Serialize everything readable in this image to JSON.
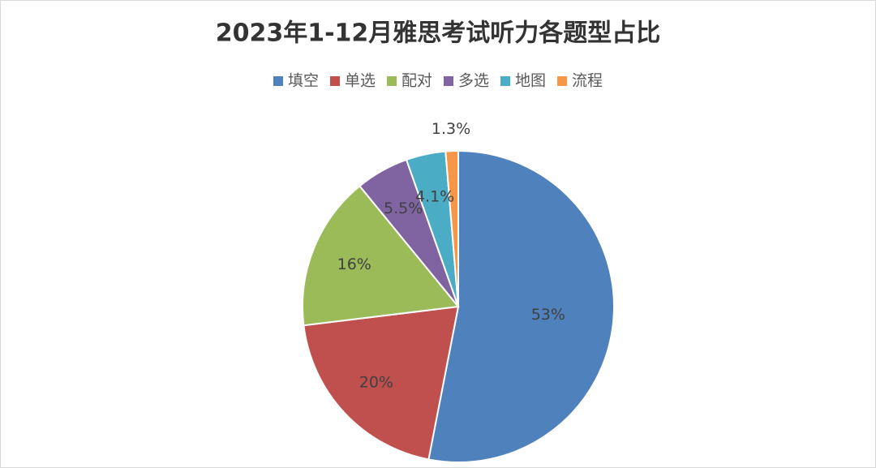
{
  "chart_data": {
    "type": "pie",
    "title": "2023年1-12月雅思考试听力各题型占比",
    "categories": [
      "填空",
      "单选",
      "配对",
      "多选",
      "地图",
      "流程"
    ],
    "values": [
      53,
      20,
      16,
      5.5,
      4.1,
      1.3
    ],
    "value_labels": [
      "53%",
      "20%",
      "16%",
      "5.5%",
      "4.1%",
      "1.3%"
    ],
    "colors": [
      "#4f81bd",
      "#c0504d",
      "#9bbb59",
      "#8064a2",
      "#4bacc6",
      "#f79646"
    ],
    "legend": "top"
  }
}
